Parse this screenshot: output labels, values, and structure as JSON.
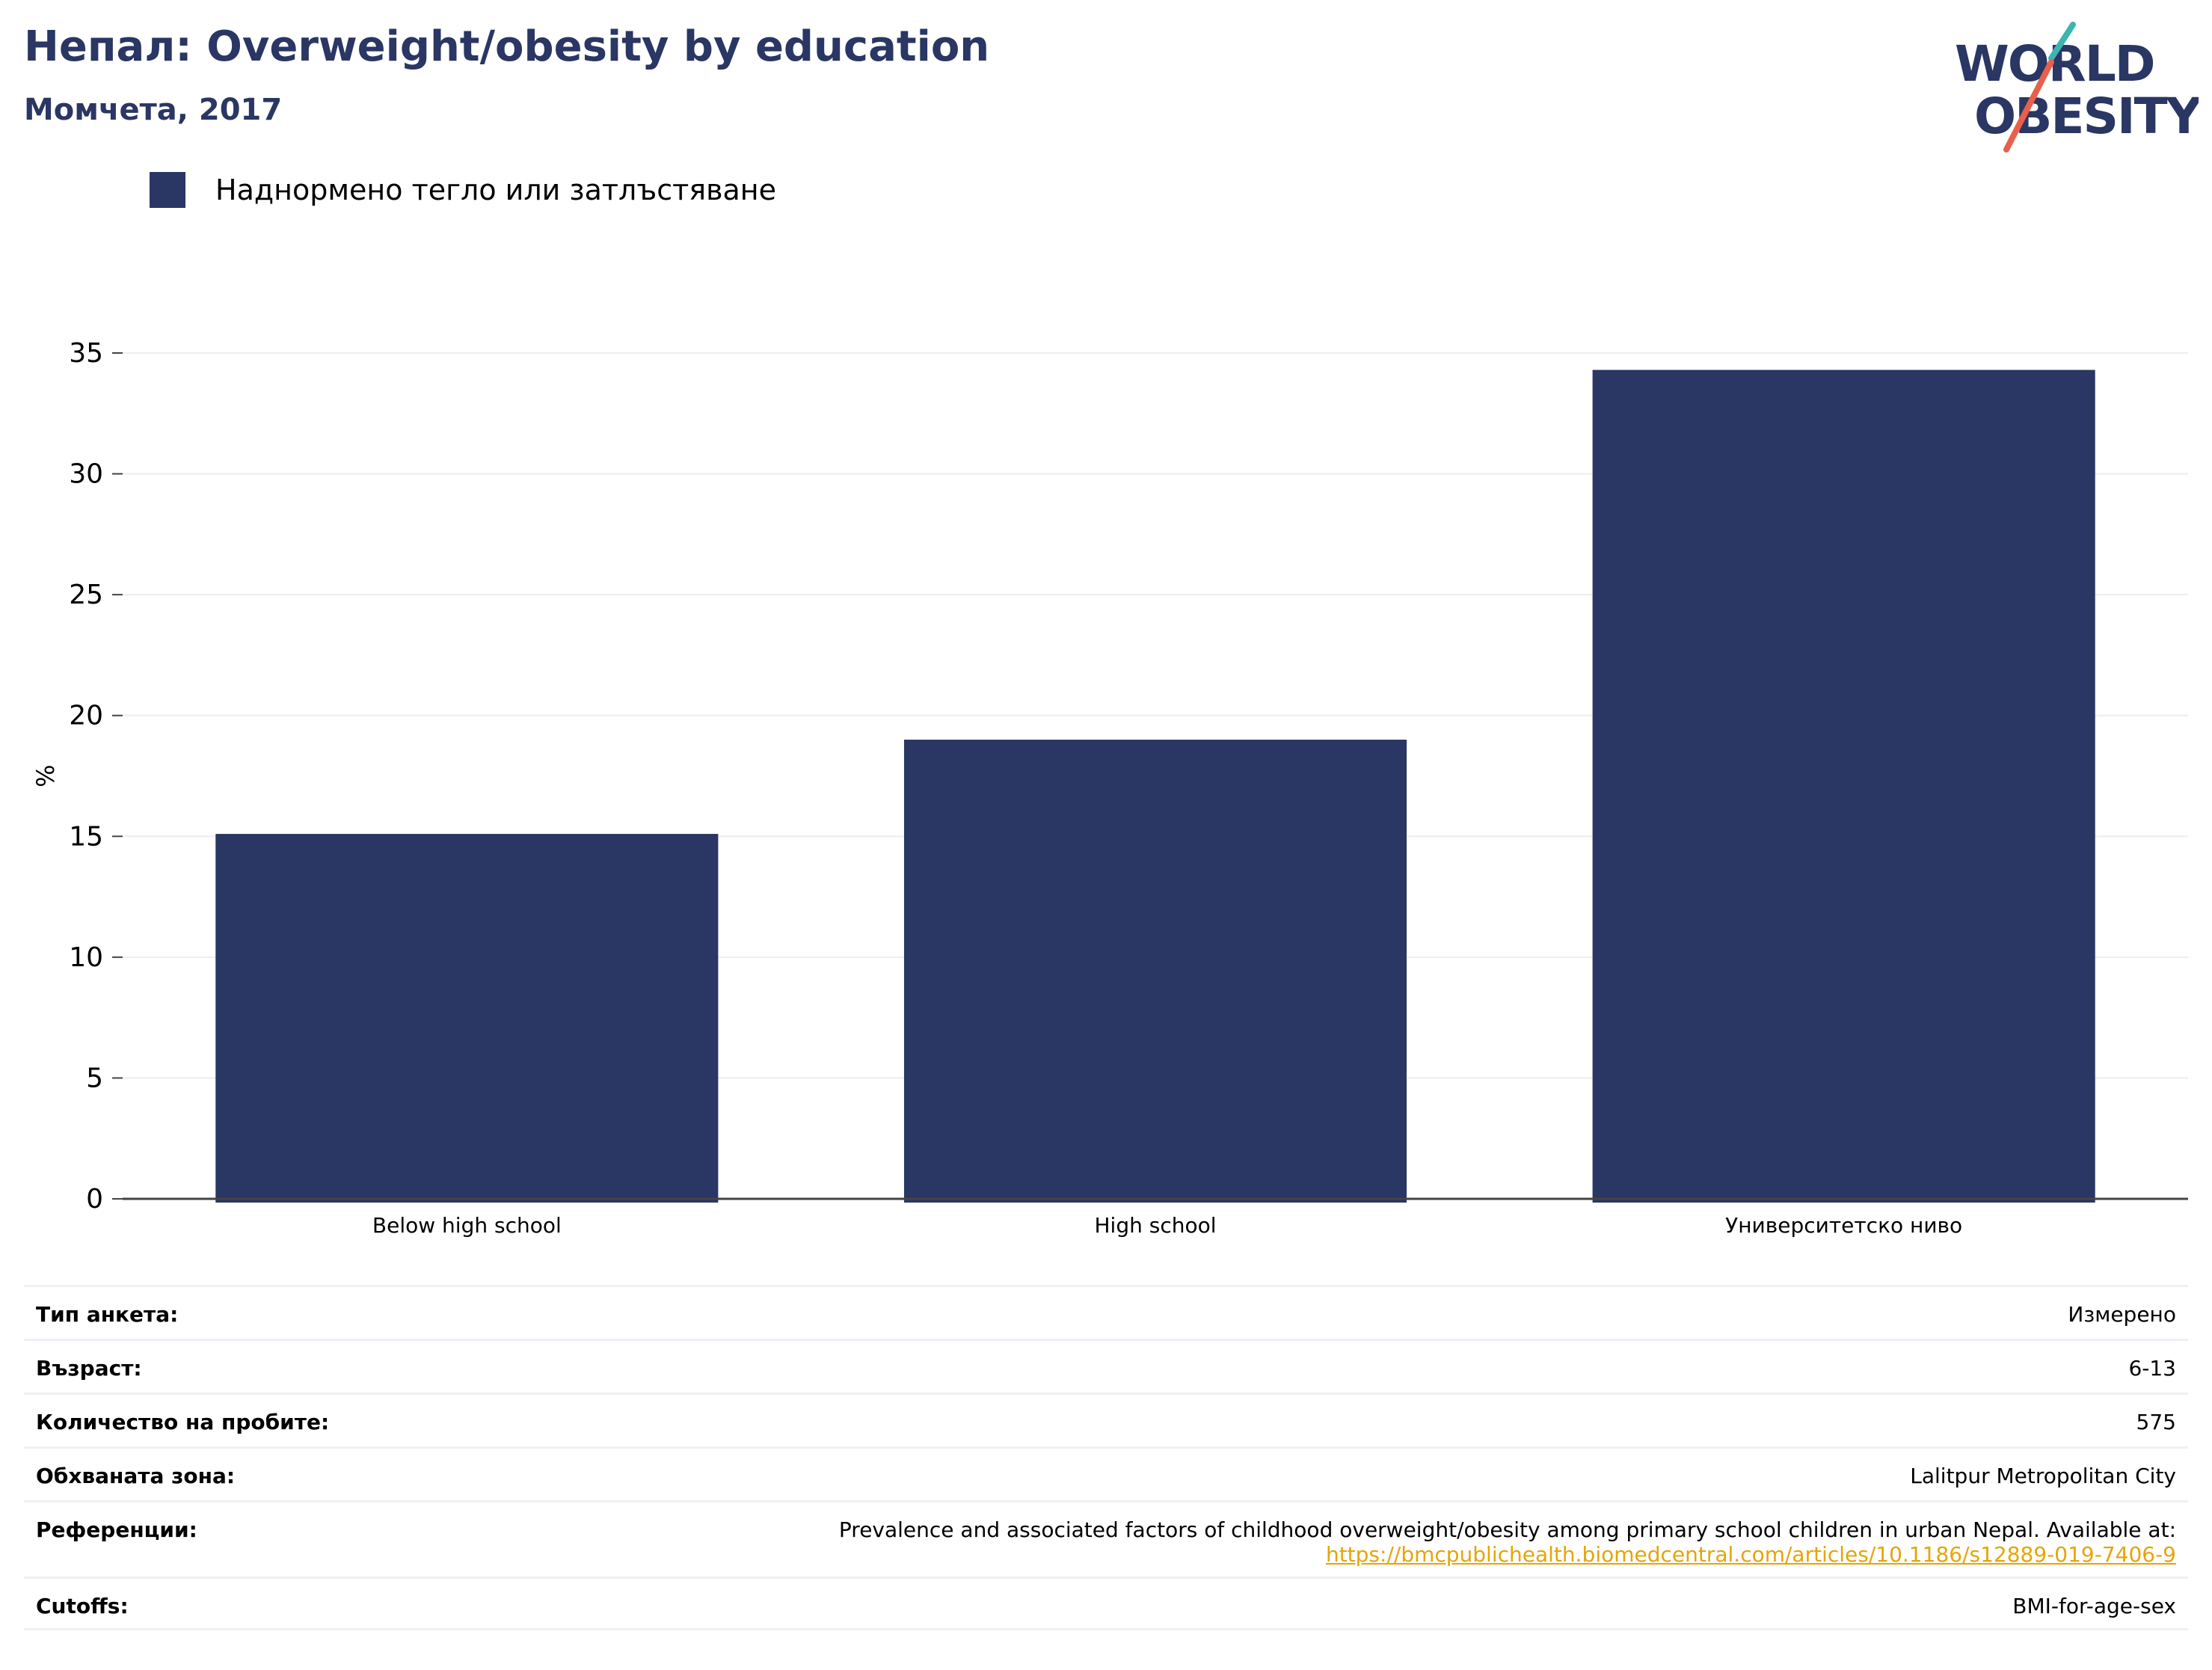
{
  "header": {
    "title": "Непал: Overweight/obesity by education",
    "subtitle": "Момчета, 2017"
  },
  "logo": {
    "line1": "WORLD",
    "line2": "OBESITY",
    "colors": {
      "text": "#2a3663",
      "slash_top": "#3ab5b0",
      "slash_bottom": "#e8604c"
    }
  },
  "colors": {
    "bar": "#2a3663",
    "grid": "#eeeeee",
    "axis": "#444444",
    "link": "#e5a50a"
  },
  "chart_data": {
    "type": "bar",
    "title": "Непал: Overweight/obesity by education",
    "subtitle": "Момчета, 2017",
    "categories": [
      "Below high school",
      "High school",
      "Университетско ниво"
    ],
    "series": [
      {
        "name": "Наднормено тегло или затлъстяване",
        "values": [
          15.1,
          19.0,
          34.3
        ]
      }
    ],
    "xlabel": "",
    "ylabel": "%",
    "ylim": [
      0,
      35
    ],
    "yticks": [
      0,
      5,
      10,
      15,
      20,
      25,
      30,
      35
    ],
    "grid": true,
    "legend": "top-left"
  },
  "meta": {
    "rows": [
      {
        "key": "Тип анкета:",
        "value": "Измерено"
      },
      {
        "key": "Възраст:",
        "value": "6-13"
      },
      {
        "key": "Количество на пробите:",
        "value": "575"
      },
      {
        "key": "Обхваната зона:",
        "value": "Lalitpur Metropolitan City"
      },
      {
        "key": "Референции:",
        "value": "Prevalence and associated factors of childhood overweight/obesity among primary school children in urban Nepal. Available at:",
        "link": "https://bmcpublichealth.biomedcentral.com/articles/10.1186/s12889-019-7406-9"
      },
      {
        "key": "Cutoffs:",
        "value": "BMI-for-age-sex"
      }
    ]
  }
}
